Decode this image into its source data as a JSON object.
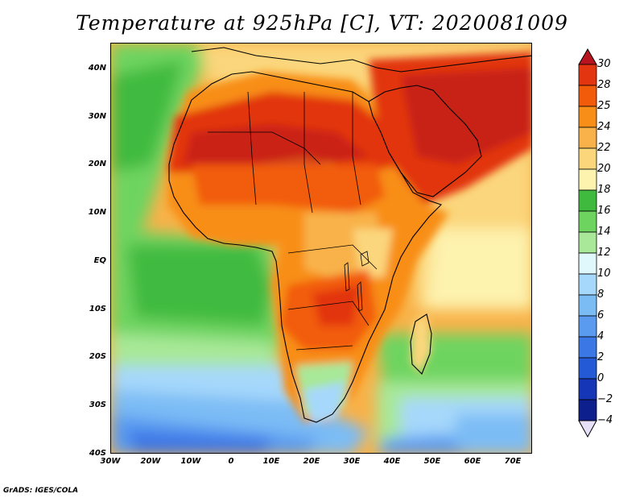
{
  "title": "Temperature at 925hPa [C], VT: 2020081009",
  "axes": {
    "lat_labels": [
      "40N",
      "30N",
      "20N",
      "10N",
      "EQ",
      "10S",
      "20S",
      "30S",
      "40S"
    ],
    "lon_labels": [
      "30W",
      "20W",
      "10W",
      "0",
      "10E",
      "20E",
      "30E",
      "40E",
      "50E",
      "60E",
      "70E"
    ]
  },
  "colorbar": {
    "labels": [
      "30",
      "28",
      "25",
      "24",
      "22",
      "20",
      "18",
      "16",
      "14",
      "12",
      "10",
      "8",
      "6",
      "4",
      "2",
      "0",
      "-2",
      "-4"
    ],
    "colors": [
      "#b8141f",
      "#e23510",
      "#f25b0a",
      "#f88e17",
      "#f8b249",
      "#fbd67b",
      "#fdf2ae",
      "#3fba3f",
      "#6ed460",
      "#a8e898",
      "#e0f7fc",
      "#a6d8fb",
      "#7cbcf5",
      "#5a9bf0",
      "#3c77e6",
      "#245ad6",
      "#1636b8",
      "#0c1f8c",
      "#0a1468"
    ]
  },
  "credit": "GrADS: IGES/COLA"
}
